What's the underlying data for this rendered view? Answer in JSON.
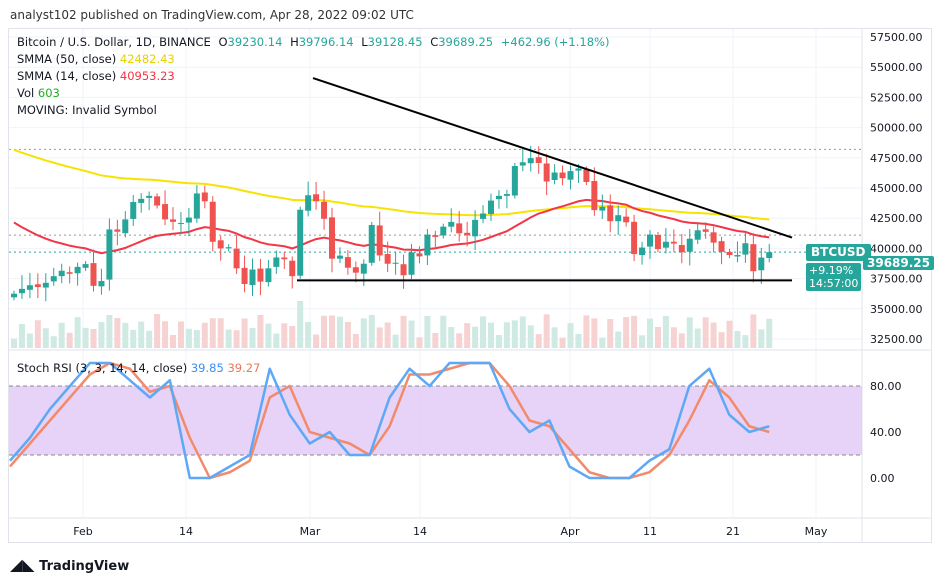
{
  "published": "analyst102 published on TradingView.com, Apr 28, 2022 09:02 UTC",
  "legend": {
    "symbol": "Bitcoin / U.S. Dollar, 1D, BINANCE",
    "o": "39230.14",
    "h": "39796.14",
    "l": "39128.45",
    "c": "39689.25",
    "change": "+462.96 (+1.18%)",
    "smma50_label": "SMMA (50, close)",
    "smma50_value": "42482.43",
    "smma14_label": "SMMA (14, close)",
    "smma14_value": "40953.23",
    "vol_label": "Vol",
    "vol_value": "603",
    "moving": "MOVING: Invalid Symbol"
  },
  "stoch": {
    "label": "Stoch RSI (3, 3, 14, 14, close)",
    "k": "39.85",
    "d": "39.27"
  },
  "price_tag": {
    "symbol": "BTCUSD",
    "price": "39689.25",
    "pct": "+9.19%",
    "countdown": "14:57:00"
  },
  "footer": "TradingView",
  "colors": {
    "up": "#26a69a",
    "down": "#ef5350",
    "smma50": "#f5e400",
    "smma14": "#f23645",
    "k": "#5fa8f5",
    "d": "#f28b6b",
    "band": "#e1c8f5"
  },
  "chart_data": {
    "type": "candlestick",
    "ylim": [
      31500,
      58500
    ],
    "price_ticks": [
      "57500.00",
      "55000.00",
      "52500.00",
      "50000.00",
      "47500.00",
      "45000.00",
      "42500.00",
      "40000.00",
      "37500.00",
      "35000.00",
      "32500.00"
    ],
    "time_ticks": [
      "Feb",
      "14",
      "Mar",
      "14",
      "Apr",
      "11",
      "21",
      "May"
    ],
    "closes": [
      36250,
      36650,
      36950,
      36800,
      37150,
      37700,
      38150,
      37900,
      38470,
      38700,
      36900,
      37300,
      41570,
      41380,
      42400,
      43840,
      44100,
      44350,
      43550,
      42400,
      42200,
      42100,
      42550,
      44550,
      43900,
      40550,
      40000,
      40100,
      38350,
      37050,
      38250,
      37250,
      38350,
      39250,
      39100,
      37700,
      43200,
      44400,
      43900,
      42450,
      39150,
      39400,
      38400,
      37990,
      38730,
      41940,
      39420,
      38730,
      38810,
      37780,
      39670,
      39340,
      41140,
      40950,
      41800,
      42190,
      41250,
      41080,
      42360,
      42890,
      43960,
      44350,
      44500,
      46820,
      47130,
      47470,
      47070,
      45540,
      46280,
      45810,
      46400,
      46620,
      45500,
      43170,
      43440,
      42250,
      42750,
      42160,
      39530,
      40070,
      41150,
      39940,
      40550,
      40400,
      39680,
      40800,
      41500,
      41370,
      40480,
      39710,
      39450,
      39450,
      40430,
      38110,
      39240,
      39689
    ],
    "trendlines": [
      {
        "from": [
          "Mar 1",
          54100
        ],
        "to": [
          "Apr 28",
          40900
        ]
      },
      {
        "from": [
          "Feb 28",
          37350
        ],
        "to": [
          "Apr 28",
          37350
        ]
      }
    ],
    "stoch_rsi": {
      "ticks": [
        "80.00",
        "40.00",
        "0.00"
      ],
      "band": [
        20,
        80
      ],
      "k": [
        15,
        35,
        60,
        80,
        100,
        100,
        85,
        70,
        85,
        0,
        0,
        10,
        20,
        95,
        55,
        30,
        40,
        20,
        20,
        70,
        95,
        80,
        100,
        100,
        100,
        60,
        40,
        50,
        10,
        0,
        0,
        0,
        15,
        25,
        80,
        95,
        55,
        40,
        45
      ],
      "d": [
        10,
        30,
        50,
        70,
        90,
        100,
        95,
        75,
        80,
        35,
        0,
        5,
        15,
        70,
        80,
        40,
        35,
        30,
        20,
        45,
        90,
        90,
        95,
        100,
        100,
        80,
        50,
        45,
        25,
        5,
        0,
        0,
        5,
        20,
        50,
        85,
        70,
        45,
        40
      ]
    }
  }
}
